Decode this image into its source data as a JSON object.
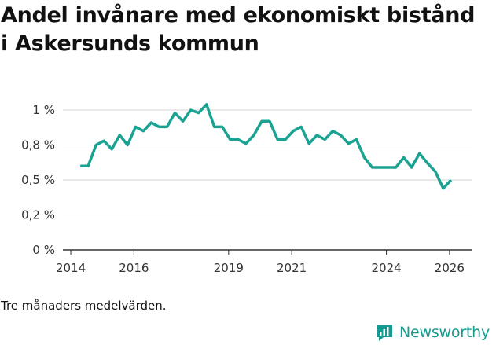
{
  "title": "Andel invånare med ekonomiskt bistånd i Askersunds kommun",
  "footnote": "Tre månaders medelvärden.",
  "brand": {
    "name": "Newsworthy",
    "icon": "newsworthy-logo-icon",
    "color": "#159b8f"
  },
  "colors": {
    "line": "#1aa393",
    "grid": "#d6d6d6",
    "axis": "#333333"
  },
  "chart_data": {
    "type": "line",
    "title": "Andel invånare med ekonomiskt bistånd i Askersunds kommun",
    "xlabel": "",
    "ylabel": "",
    "xlim": [
      2013.75,
      2026.7
    ],
    "ylim": [
      0,
      1.0
    ],
    "x_ticks": [
      {
        "value": 2014,
        "label": "2014"
      },
      {
        "value": 2016,
        "label": "2016"
      },
      {
        "value": 2019,
        "label": "2019"
      },
      {
        "value": 2021,
        "label": "2021"
      },
      {
        "value": 2024,
        "label": "2024"
      },
      {
        "value": 2026,
        "label": "2026"
      }
    ],
    "y_ticks": [
      {
        "value": 0,
        "label": "0 %"
      },
      {
        "value": 0.25,
        "label": "0,2 %"
      },
      {
        "value": 0.5,
        "label": "0,5 %"
      },
      {
        "value": 0.75,
        "label": "0,8 %"
      },
      {
        "value": 1.0,
        "label": "1 %"
      }
    ],
    "series": [
      {
        "name": "Andel invånare med ekonomiskt bistånd",
        "x": [
          2014.3,
          2014.55,
          2014.8,
          2015.05,
          2015.3,
          2015.55,
          2015.8,
          2016.05,
          2016.3,
          2016.55,
          2016.8,
          2017.05,
          2017.3,
          2017.55,
          2017.8,
          2018.05,
          2018.3,
          2018.55,
          2018.8,
          2019.05,
          2019.3,
          2019.55,
          2019.8,
          2020.05,
          2020.3,
          2020.55,
          2020.8,
          2021.05,
          2021.3,
          2021.55,
          2021.8,
          2022.05,
          2022.3,
          2022.55,
          2022.8,
          2023.05,
          2023.3,
          2023.55,
          2023.8,
          2024.05,
          2024.3,
          2024.55,
          2024.8,
          2025.05,
          2025.3,
          2025.55,
          2025.8,
          2026.05
        ],
        "values": [
          0.6,
          0.6,
          0.75,
          0.78,
          0.72,
          0.82,
          0.75,
          0.88,
          0.85,
          0.91,
          0.88,
          0.88,
          0.98,
          0.92,
          1.0,
          0.98,
          1.04,
          0.88,
          0.88,
          0.79,
          0.79,
          0.76,
          0.82,
          0.92,
          0.92,
          0.79,
          0.79,
          0.85,
          0.88,
          0.76,
          0.82,
          0.79,
          0.85,
          0.82,
          0.76,
          0.79,
          0.66,
          0.59,
          0.59,
          0.59,
          0.59,
          0.66,
          0.59,
          0.69,
          0.62,
          0.56,
          0.44,
          0.5
        ]
      }
    ]
  }
}
